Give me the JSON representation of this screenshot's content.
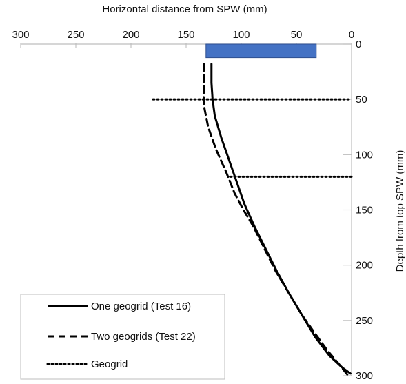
{
  "chart_data": {
    "type": "line",
    "title": "",
    "xlabel": "Horizontal distance from SPW (mm)",
    "ylabel": "Depth from top SPW (mm)",
    "x_axis_position": "top",
    "y_axis_position": "right",
    "x_reversed": true,
    "y_reversed": true,
    "xlim": [
      300,
      0
    ],
    "ylim": [
      0,
      300
    ],
    "x_ticks": [
      300,
      250,
      200,
      150,
      100,
      50,
      0
    ],
    "y_ticks": [
      0,
      50,
      100,
      150,
      200,
      250,
      300
    ],
    "x_tick_labels": [
      "300",
      "250",
      "200",
      "150",
      "100",
      "50",
      "0"
    ],
    "y_tick_labels": [
      "0",
      "50",
      "100",
      "150",
      "200",
      "250",
      "300"
    ],
    "grid": false,
    "legend_position": "bottom-left",
    "wall_block": {
      "x_from": 132,
      "x_to": 32,
      "depth_from": 0,
      "depth_to": 6,
      "color": "#4472c4"
    },
    "series": [
      {
        "name": "One geogrid (Test 16)",
        "style": "solid",
        "color": "#000000",
        "points": [
          {
            "x": 127,
            "y": 18
          },
          {
            "x": 127,
            "y": 35
          },
          {
            "x": 126,
            "y": 50
          },
          {
            "x": 124,
            "y": 65
          },
          {
            "x": 118,
            "y": 85
          },
          {
            "x": 111,
            "y": 105
          },
          {
            "x": 104,
            "y": 125
          },
          {
            "x": 97,
            "y": 145
          },
          {
            "x": 88,
            "y": 165
          },
          {
            "x": 78,
            "y": 185
          },
          {
            "x": 68,
            "y": 205
          },
          {
            "x": 57,
            "y": 225
          },
          {
            "x": 45,
            "y": 245
          },
          {
            "x": 33,
            "y": 265
          },
          {
            "x": 20,
            "y": 282
          },
          {
            "x": 8,
            "y": 293
          },
          {
            "x": 1,
            "y": 298
          }
        ]
      },
      {
        "name": "Two geogrids (Test 22)",
        "style": "dashed",
        "color": "#000000",
        "points": [
          {
            "x": 134,
            "y": 18
          },
          {
            "x": 134,
            "y": 35
          },
          {
            "x": 134,
            "y": 55
          },
          {
            "x": 130,
            "y": 75
          },
          {
            "x": 123,
            "y": 95
          },
          {
            "x": 114,
            "y": 115
          },
          {
            "x": 106,
            "y": 135
          },
          {
            "x": 98,
            "y": 150
          },
          {
            "x": 89,
            "y": 165
          },
          {
            "x": 79,
            "y": 185
          },
          {
            "x": 69,
            "y": 205
          },
          {
            "x": 57,
            "y": 225
          },
          {
            "x": 45,
            "y": 245
          },
          {
            "x": 33,
            "y": 262
          },
          {
            "x": 22,
            "y": 277
          },
          {
            "x": 11,
            "y": 290
          },
          {
            "x": 3,
            "y": 300
          }
        ]
      },
      {
        "name": "Geogrid",
        "style": "dotted",
        "color": "#000000",
        "segments": [
          {
            "x_from": 180,
            "x_to": 0,
            "y": 50
          },
          {
            "x_from": 110,
            "x_to": 0,
            "y": 120
          }
        ]
      }
    ],
    "legend": [
      {
        "label": "One geogrid (Test 16)",
        "style": "solid"
      },
      {
        "label": "Two geogrids (Test 22)",
        "style": "dashed"
      },
      {
        "label": "Geogrid",
        "style": "dotted"
      }
    ]
  }
}
